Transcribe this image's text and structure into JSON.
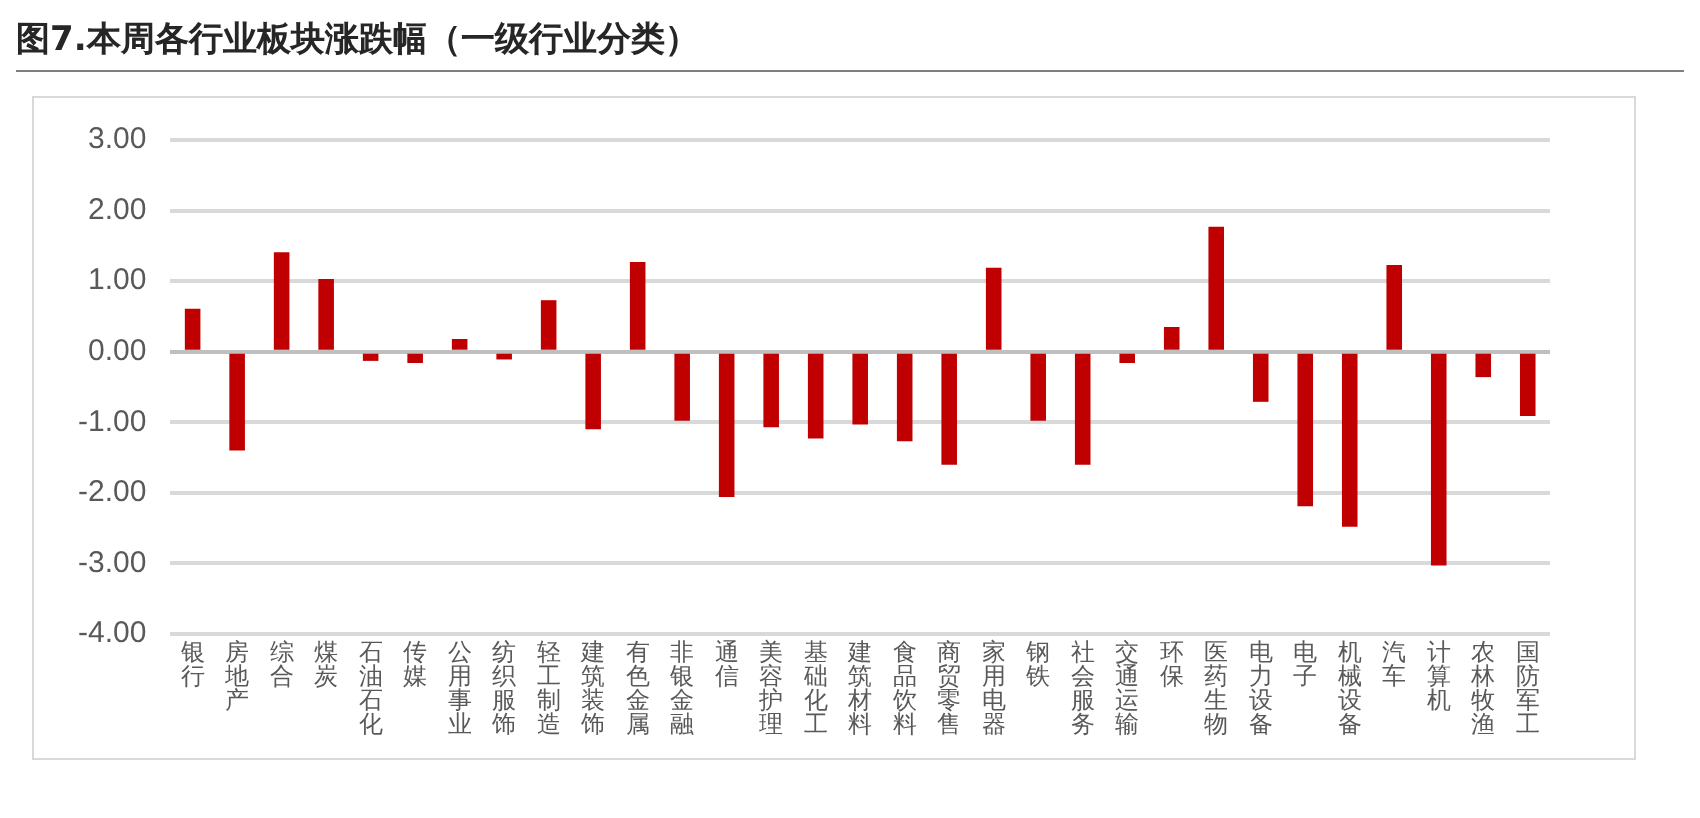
{
  "chart_data": {
    "type": "bar",
    "title": "图7.本周各行业板块涨跌幅（一级行业分类）",
    "categories": [
      "银行",
      "房地产",
      "综合",
      "煤炭",
      "石油石化",
      "传媒",
      "公用事业",
      "纺织服饰",
      "轻工制造",
      "建筑装饰",
      "有色金属",
      "非银金融",
      "通信",
      "美容护理",
      "基础化工",
      "建筑材料",
      "食品饮料",
      "商贸零售",
      "家用电器",
      "钢铁",
      "社会服务",
      "交通运输",
      "环保",
      "医药生物",
      "电力设备",
      "电子",
      "机械设备",
      "汽车",
      "计算机",
      "农林牧渔",
      "国防军工"
    ],
    "values": [
      0.61,
      -1.4,
      1.41,
      1.03,
      -0.13,
      -0.16,
      0.18,
      -0.11,
      0.73,
      -1.1,
      1.27,
      -0.98,
      -2.06,
      -1.07,
      -1.23,
      -1.03,
      -1.27,
      -1.6,
      1.19,
      -0.98,
      -1.6,
      -0.16,
      0.35,
      1.77,
      -0.71,
      -2.19,
      -2.48,
      1.23,
      -3.03,
      -0.36,
      -0.91
    ],
    "color": "#c00000",
    "ylim": [
      -4,
      3
    ],
    "yticks": [
      {
        "value": -4,
        "label": "-4.00"
      },
      {
        "value": -3,
        "label": "-3.00"
      },
      {
        "value": -2,
        "label": "-2.00"
      },
      {
        "value": -1,
        "label": "-1.00"
      },
      {
        "value": 0,
        "label": "0.00"
      },
      {
        "value": 1,
        "label": "1.00"
      },
      {
        "value": 2,
        "label": "2.00"
      },
      {
        "value": 3,
        "label": "3.00"
      }
    ],
    "grid": "y",
    "legend": false
  }
}
